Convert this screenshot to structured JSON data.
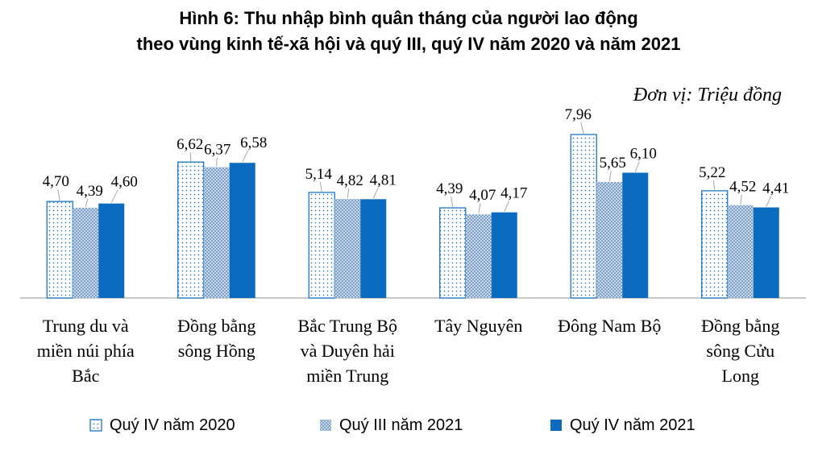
{
  "chart_data": {
    "type": "bar",
    "title_lines": [
      "Hình 6: Thu nhập bình quân tháng của người lao động",
      "theo vùng kinh tế-xã hội và quý III, quý IV năm 2020 và năm 2021"
    ],
    "unit": "Đơn vị: Triệu đồng",
    "categories": [
      [
        "Trung du và",
        "miền núi phía",
        "Bắc"
      ],
      [
        "Đồng bằng",
        "sông Hồng"
      ],
      [
        "Bắc Trung Bộ",
        "và Duyên hải",
        "miền Trung"
      ],
      [
        "Tây Nguyên"
      ],
      [
        "Đông Nam Bộ"
      ],
      [
        "Đồng bằng",
        "sông Cửu",
        "Long"
      ]
    ],
    "series": [
      {
        "name": "Quý IV năm 2020",
        "style": "dotted",
        "values": [
          4.7,
          6.62,
          5.14,
          4.39,
          7.96,
          5.22
        ],
        "labels": [
          "4,70",
          "6,62",
          "5,14",
          "4,39",
          "7,96",
          "5,22"
        ]
      },
      {
        "name": "Quý III năm 2021",
        "style": "hatched",
        "values": [
          4.39,
          6.37,
          4.82,
          4.07,
          5.65,
          4.52
        ],
        "labels": [
          "4,39",
          "6,37",
          "4,82",
          "4,07",
          "5,65",
          "4,52"
        ]
      },
      {
        "name": "Quý IV năm 2021",
        "style": "solid",
        "values": [
          4.6,
          6.58,
          4.81,
          4.17,
          6.1,
          4.41
        ],
        "labels": [
          "4,60",
          "6,58",
          "4,81",
          "4,17",
          "6,10",
          "4,41"
        ]
      }
    ],
    "ylim": [
      0,
      8
    ],
    "colors": {
      "primary": "#0B6BBF",
      "hatch": "#9FB7D3",
      "axis": "#B7B7B7"
    }
  }
}
